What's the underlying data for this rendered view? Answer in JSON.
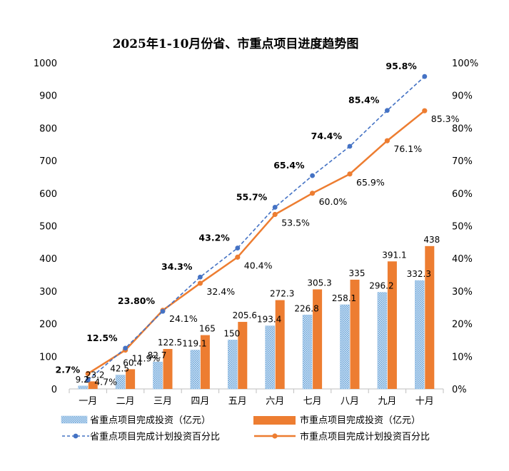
{
  "chart_data": {
    "type": "bar+line",
    "title": "2025年1-10月份省、市重点项目进度趋势图",
    "categories": [
      "一月",
      "二月",
      "三月",
      "四月",
      "五月",
      "六月",
      "七月",
      "八月",
      "九月",
      "十月"
    ],
    "y_left": {
      "min": 0,
      "max": 1000,
      "step": 100,
      "ticks": [
        "0",
        "100",
        "200",
        "300",
        "400",
        "500",
        "600",
        "700",
        "800",
        "900",
        "1000"
      ]
    },
    "y_right": {
      "min": 0,
      "max": 100,
      "step": 10,
      "ticks": [
        "0%",
        "10%",
        "20%",
        "30%",
        "40%",
        "50%",
        "60%",
        "70%",
        "80%",
        "90%",
        "100%"
      ]
    },
    "bar_series": [
      {
        "name": "省重点项目完成投资（亿元）",
        "color": "#9DC3E6",
        "values": [
          9.2,
          42.5,
          82.7,
          119.1,
          150,
          193.4,
          226.8,
          258.1,
          296.2,
          332.3
        ],
        "labels": [
          "9.2",
          "42.5",
          "82.7",
          "119.1",
          "150",
          "193.4",
          "226.8",
          "258.1",
          "296.2",
          "332.3"
        ]
      },
      {
        "name": "市重点项目完成投资（亿元）",
        "color": "#ED7D31",
        "values": [
          23.2,
          60.4,
          122.5,
          165,
          205.6,
          272.3,
          305.3,
          335,
          391.1,
          438
        ],
        "labels": [
          "23.2",
          "60.4",
          "122.5",
          "165",
          "205.6",
          "272.3",
          "305.3",
          "335",
          "391.1",
          "438"
        ]
      }
    ],
    "line_series": [
      {
        "name": "省重点项目完成计划投资百分比",
        "color": "#4472C4",
        "style": "dashed",
        "values": [
          2.7,
          12.5,
          23.8,
          34.3,
          43.2,
          55.7,
          65.4,
          74.4,
          85.4,
          95.8
        ],
        "labels": [
          "2.7%",
          "12.5%",
          "23.80%",
          "34.3%",
          "43.2%",
          "55.7%",
          "65.4%",
          "74.4%",
          "85.4%",
          "95.8%"
        ]
      },
      {
        "name": "市重点项目完成计划投资百分比",
        "color": "#ED7D31",
        "style": "solid",
        "values": [
          4.7,
          11.9,
          24.1,
          32.4,
          40.4,
          53.5,
          60.0,
          65.9,
          76.1,
          85.3
        ],
        "labels": [
          "4.7%",
          "11.9%",
          "24.1%",
          "32.4%",
          "40.4%",
          "53.5%",
          "60.0%",
          "65.9%",
          "76.1%",
          "85.3%"
        ]
      }
    ],
    "legend": {
      "bar1": "省重点项目完成投资（亿元）",
      "bar2": "市重点项目完成投资（亿元）",
      "line1": "省重点项目完成计划投资百分比",
      "line2": "市重点项目完成计划投资百分比"
    },
    "legend_position": "bottom",
    "grid": false
  }
}
